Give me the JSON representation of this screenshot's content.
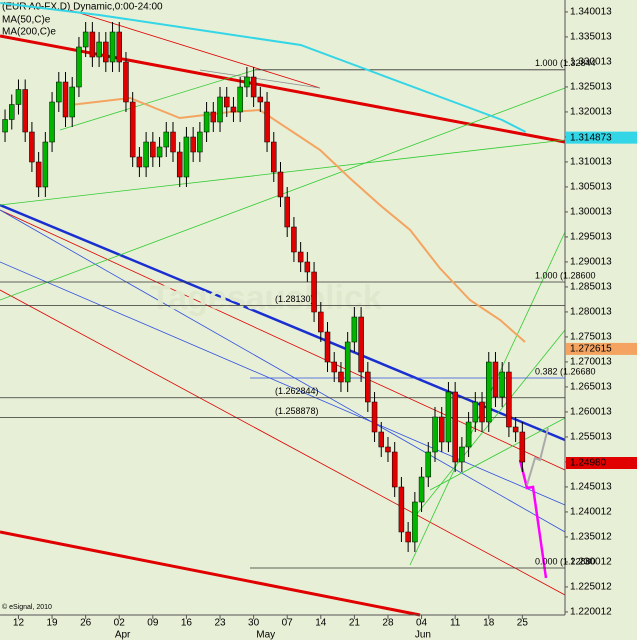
{
  "chart_data": {
    "type": "candlestick",
    "title": "(EUR A0-FX,D) Dynamic,0:00-24:00",
    "watermark": "Tagesausblick",
    "credit": "© eSignal, 2010",
    "up_color": "#00b400",
    "down_color": "#e00000",
    "open": [
      1.316,
      1.3185,
      1.3215,
      1.3245,
      1.316,
      1.31,
      1.305,
      1.314,
      1.322,
      1.326,
      1.319,
      1.325,
      1.333,
      1.336,
      1.331,
      1.334,
      1.33,
      1.336,
      1.33,
      1.322,
      1.311,
      1.309,
      1.314,
      1.311,
      1.313,
      1.316,
      1.312,
      1.307,
      1.315,
      1.312,
      1.316,
      1.32,
      1.318,
      1.323,
      1.321,
      1.32,
      1.325,
      1.327,
      1.323,
      1.322,
      1.314,
      1.308,
      1.303,
      1.297,
      1.292,
      1.29,
      1.288,
      1.28,
      1.276,
      1.27,
      1.268,
      1.266,
      1.274,
      1.279,
      1.268,
      1.262,
      1.256,
      1.253,
      1.252,
      1.245,
      1.236,
      1.234,
      1.242,
      1.247,
      1.252,
      1.259,
      1.254,
      1.264,
      1.25,
      1.253,
      1.258,
      1.262,
      1.258,
      1.27,
      1.263,
      1.268,
      1.257,
      1.256
    ],
    "high": [
      1.3205,
      1.3235,
      1.3265,
      1.3265,
      1.318,
      1.312,
      1.316,
      1.324,
      1.328,
      1.328,
      1.327,
      1.335,
      1.338,
      1.338,
      1.336,
      1.336,
      1.338,
      1.338,
      1.332,
      1.324,
      1.313,
      1.316,
      1.316,
      1.315,
      1.318,
      1.318,
      1.314,
      1.317,
      1.317,
      1.318,
      1.322,
      1.322,
      1.325,
      1.325,
      1.323,
      1.327,
      1.329,
      1.329,
      1.325,
      1.324,
      1.316,
      1.31,
      1.305,
      1.299,
      1.294,
      1.292,
      1.29,
      1.282,
      1.278,
      1.272,
      1.27,
      1.276,
      1.281,
      1.281,
      1.27,
      1.264,
      1.258,
      1.255,
      1.254,
      1.247,
      1.238,
      1.244,
      1.249,
      1.254,
      1.261,
      1.261,
      1.266,
      1.266,
      1.255,
      1.26,
      1.264,
      1.264,
      1.272,
      1.272,
      1.27,
      1.27,
      1.259,
      1.258
    ],
    "low": [
      1.314,
      1.3165,
      1.3195,
      1.314,
      1.308,
      1.303,
      1.303,
      1.312,
      1.32,
      1.317,
      1.317,
      1.323,
      1.331,
      1.329,
      1.329,
      1.328,
      1.328,
      1.328,
      1.32,
      1.309,
      1.307,
      1.307,
      1.309,
      1.309,
      1.311,
      1.31,
      1.305,
      1.305,
      1.31,
      1.31,
      1.314,
      1.316,
      1.316,
      1.319,
      1.318,
      1.318,
      1.323,
      1.321,
      1.32,
      1.312,
      1.306,
      1.301,
      1.295,
      1.29,
      1.288,
      1.286,
      1.278,
      1.274,
      1.268,
      1.266,
      1.264,
      1.264,
      1.272,
      1.266,
      1.26,
      1.254,
      1.251,
      1.25,
      1.243,
      1.234,
      1.232,
      1.232,
      1.24,
      1.245,
      1.25,
      1.252,
      1.252,
      1.248,
      1.248,
      1.251,
      1.256,
      1.256,
      1.256,
      1.261,
      1.261,
      1.255,
      1.254,
      1.248
    ],
    "close": [
      1.3185,
      1.3215,
      1.3245,
      1.316,
      1.31,
      1.305,
      1.314,
      1.322,
      1.326,
      1.319,
      1.325,
      1.333,
      1.336,
      1.331,
      1.334,
      1.33,
      1.336,
      1.33,
      1.322,
      1.311,
      1.309,
      1.314,
      1.311,
      1.313,
      1.316,
      1.312,
      1.307,
      1.315,
      1.312,
      1.316,
      1.32,
      1.318,
      1.323,
      1.321,
      1.32,
      1.325,
      1.327,
      1.323,
      1.322,
      1.314,
      1.308,
      1.303,
      1.297,
      1.292,
      1.29,
      1.288,
      1.28,
      1.276,
      1.27,
      1.268,
      1.266,
      1.274,
      1.279,
      1.268,
      1.262,
      1.256,
      1.253,
      1.252,
      1.245,
      1.236,
      1.234,
      1.242,
      1.247,
      1.252,
      1.259,
      1.254,
      1.264,
      1.25,
      1.253,
      1.258,
      1.262,
      1.258,
      1.27,
      1.263,
      1.268,
      1.257,
      1.256,
      1.25
    ],
    "series": [
      {
        "name": "MA(50,C)e",
        "color": "#f4a460",
        "x": [
          9.7,
          18.6,
          26,
          33.5,
          37.9,
          42.4,
          46.9,
          51.3,
          55.8,
          60.3,
          64.7,
          69.2,
          73.7,
          77.4
        ],
        "values": [
          1.3214,
          1.3228,
          1.3188,
          1.32,
          1.3204,
          1.3164,
          1.3124,
          1.3068,
          1.3014,
          1.2964,
          1.2888,
          1.2824,
          1.2784,
          1.274
        ]
      },
      {
        "name": "MA(200,C)e",
        "color": "#33d6e6",
        "x": [
          -0.7,
          14,
          29,
          44,
          56,
          66,
          74,
          77.5
        ],
        "values": [
          1.3418,
          1.3394,
          1.3364,
          1.3334,
          1.3274,
          1.3224,
          1.3184,
          1.316
        ]
      }
    ],
    "levels": [
      {
        "label": "1.000 (1.32844",
        "value": 1.32844
      },
      {
        "label": "1.000 (1.28600",
        "value": 1.286
      },
      {
        "label": "(1.28130)",
        "value": 1.2813
      },
      {
        "label": "0.382 (1.26680",
        "value": 1.2668
      },
      {
        "label": "(1.262844)",
        "value": 1.262844
      },
      {
        "label": "(1.258878)",
        "value": 1.258878
      },
      {
        "label": "0.000 (1.22880",
        "value": 1.2288
      }
    ],
    "price_tags": [
      {
        "value": 1.314873,
        "color": "#33d6e6"
      },
      {
        "value": 1.272615,
        "color": "#f4a460"
      },
      {
        "value": {
          "value": 1.2498,
          "label": "1.24980"
        },
        "color": "#e00000"
      }
    ],
    "xlim": [
      -0.75,
      83.35
    ],
    "ylim": [
      1.2194,
      1.3424
    ],
    "xticks": [
      {
        "value": 2,
        "label": "12"
      },
      {
        "value": 7,
        "label": "19"
      },
      {
        "value": 12,
        "label": "26"
      },
      {
        "value": 17,
        "label": "02"
      },
      {
        "value": 22,
        "label": "09"
      },
      {
        "value": 27,
        "label": "16"
      },
      {
        "value": 32,
        "label": "23"
      },
      {
        "value": 37,
        "label": "30"
      },
      {
        "value": 42,
        "label": "07"
      },
      {
        "value": 47,
        "label": "14"
      },
      {
        "value": 52,
        "label": "21"
      },
      {
        "value": 57,
        "label": "28"
      },
      {
        "value": 62,
        "label": "04"
      },
      {
        "value": 67,
        "label": "11"
      },
      {
        "value": 72,
        "label": "18"
      },
      {
        "value": 77,
        "label": "25"
      }
    ],
    "month_ticks": [
      {
        "value": 17.5,
        "label": "Apr"
      },
      {
        "value": 38.8,
        "label": "May"
      },
      {
        "value": 62.2,
        "label": "Jun"
      }
    ],
    "yticks": [
      1.340013,
      1.335013,
      1.330013,
      1.325013,
      1.320013,
      1.315013,
      1.310013,
      1.305013,
      1.300013,
      1.295013,
      1.290013,
      1.285013,
      1.280013,
      1.275013,
      1.270013,
      1.265013,
      1.260013,
      1.255013,
      1.250013,
      1.245013,
      1.240012,
      1.235012,
      1.230012,
      1.225012,
      1.220012
    ]
  }
}
